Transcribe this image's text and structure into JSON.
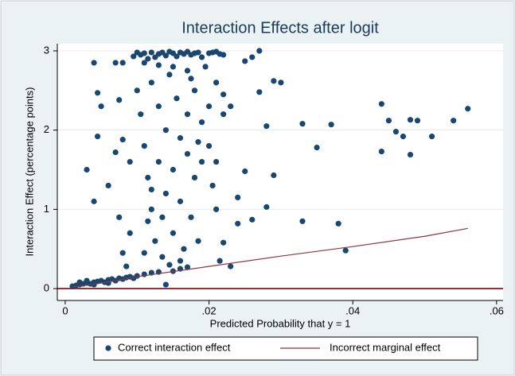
{
  "chart_data": {
    "type": "scatter",
    "title": "Interaction Effects after logit",
    "x_label": "Predicted Probability that y = 1",
    "y_label": "Interaction Effect (percentage points)",
    "xlim": [
      -0.0011,
      0.0609
    ],
    "ylim": [
      -0.15,
      3.09
    ],
    "xticks": [
      0,
      {
        "value": 0.02,
        "label": ".02"
      },
      {
        "value": 0.04,
        "label": ".04"
      },
      {
        "value": 0.06,
        "label": ".06"
      }
    ],
    "yticks": [
      0,
      1,
      2,
      3
    ],
    "grid": true,
    "reference_line": 0,
    "reference_color": "#90353b",
    "legend": "bottom",
    "series": [
      {
        "name": "Correct interaction effect",
        "type": "scatter",
        "color": "#1a476f",
        "x": [
          0.001,
          0.0015,
          0.002,
          0.0025,
          0.003,
          0.0035,
          0.004,
          0.0045,
          0.005,
          0.0055,
          0.006,
          0.0065,
          0.007,
          0.0075,
          0.008,
          0.0085,
          0.009,
          0.0095,
          0.01,
          0.011,
          0.012,
          0.013,
          0.014,
          0.015,
          0.016,
          0.017,
          0.002,
          0.003,
          0.004,
          0.006,
          0.0095,
          0.01,
          0.0105,
          0.011,
          0.0115,
          0.012,
          0.0125,
          0.013,
          0.0135,
          0.014,
          0.0145,
          0.015,
          0.0155,
          0.016,
          0.0165,
          0.017,
          0.0175,
          0.018,
          0.0185,
          0.019,
          0.02,
          0.0205,
          0.021,
          0.0215,
          0.011,
          0.013,
          0.015,
          0.017,
          0.01,
          0.0105,
          0.011,
          0.0115,
          0.012,
          0.012,
          0.0125,
          0.013,
          0.013,
          0.0135,
          0.0135,
          0.014,
          0.014,
          0.0145,
          0.015,
          0.015,
          0.0155,
          0.016,
          0.016,
          0.0165,
          0.017,
          0.017,
          0.0175,
          0.018,
          0.018,
          0.0185,
          0.019,
          0.019,
          0.0195,
          0.02,
          0.02,
          0.0205,
          0.021,
          0.021,
          0.0215,
          0.011,
          0.0115,
          0.012,
          0.0145,
          0.016,
          0.0175,
          0.0185,
          0.022,
          0.022,
          0.004,
          0.0045,
          0.005,
          0.0045,
          0.003,
          0.004,
          0.006,
          0.007,
          0.0075,
          0.007,
          0.008,
          0.008,
          0.009,
          0.009,
          0.008,
          0.0085,
          0.0075,
          0.033,
          0.035,
          0.037,
          0.038,
          0.039,
          0.033,
          0.044,
          0.045,
          0.046,
          0.047,
          0.044,
          0.048,
          0.049,
          0.048,
          0.051,
          0.054,
          0.056,
          0.028,
          0.029,
          0.03,
          0.029,
          0.028,
          0.027,
          0.026,
          0.025,
          0.027,
          0.026,
          0.025,
          0.024,
          0.024,
          0.023,
          0.022,
          0.021,
          0.022,
          0.023
        ],
        "values": [
          0.03,
          0.04,
          0.05,
          0.06,
          0.07,
          0.06,
          0.08,
          0.09,
          0.1,
          0.08,
          0.11,
          0.12,
          0.1,
          0.13,
          0.12,
          0.14,
          0.15,
          0.13,
          0.16,
          0.18,
          0.2,
          0.21,
          0.05,
          0.22,
          0.25,
          0.27,
          0.08,
          0.1,
          0.05,
          0.07,
          2.93,
          2.98,
          2.95,
          2.97,
          2.9,
          2.98,
          2.92,
          2.96,
          2.98,
          2.94,
          2.99,
          2.97,
          2.93,
          2.98,
          2.96,
          2.99,
          2.95,
          2.97,
          2.98,
          2.92,
          2.97,
          2.98,
          2.99,
          2.96,
          2.85,
          2.82,
          2.8,
          2.75,
          2.5,
          2.2,
          1.8,
          1.4,
          2.6,
          1.0,
          0.6,
          2.3,
          1.6,
          0.9,
          0.4,
          2.0,
          1.2,
          2.7,
          1.5,
          0.7,
          2.4,
          1.9,
          1.1,
          0.5,
          2.2,
          1.7,
          0.9,
          2.5,
          1.4,
          0.6,
          2.1,
          1.6,
          2.8,
          2.3,
          1.8,
          1.3,
          2.6,
          1.6,
          0.35,
          0.45,
          0.85,
          1.25,
          0.3,
          0.35,
          2.65,
          1.85,
          2.45,
          2.2,
          2.85,
          2.47,
          2.3,
          1.92,
          1.5,
          1.1,
          1.3,
          2.85,
          2.38,
          1.72,
          2.85,
          1.88,
          1.6,
          0.7,
          0.45,
          0.28,
          0.9,
          2.08,
          1.78,
          2.07,
          0.82,
          0.48,
          0.85,
          2.33,
          2.12,
          1.98,
          1.92,
          1.73,
          2.13,
          2.12,
          1.69,
          1.92,
          2.12,
          2.27,
          1.03,
          2.62,
          2.6,
          1.43,
          2.05,
          3.0,
          2.92,
          2.87,
          2.48,
          0.87,
          1.48,
          1.15,
          0.82,
          2.3,
          2.95,
          1.0,
          0.58,
          0.28
        ]
      },
      {
        "name": "Incorrect marginal effect",
        "type": "line",
        "color": "#90353b",
        "x": [
          0.001,
          0.005,
          0.01,
          0.02,
          0.03,
          0.04,
          0.05,
          0.056
        ],
        "values": [
          0.02,
          0.07,
          0.15,
          0.28,
          0.41,
          0.53,
          0.66,
          0.76
        ]
      }
    ]
  }
}
